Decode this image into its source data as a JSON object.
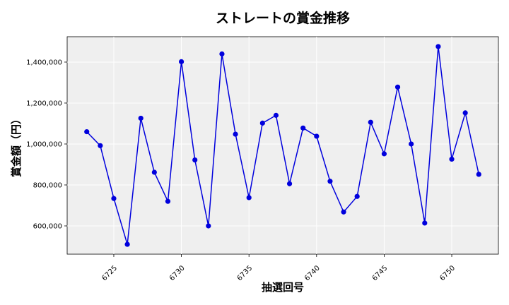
{
  "chart_data": {
    "type": "line",
    "title": "ストレートの賞金推移",
    "xlabel": "抽選回号",
    "ylabel": "賞金額（円）",
    "x": [
      6723,
      6724,
      6725,
      6726,
      6727,
      6728,
      6729,
      6730,
      6731,
      6732,
      6733,
      6734,
      6735,
      6736,
      6737,
      6738,
      6739,
      6740,
      6741,
      6742,
      6743,
      6744,
      6745,
      6746,
      6747,
      6748,
      6749,
      6750,
      6751,
      6752
    ],
    "series": [
      {
        "values": [
          1060000,
          992000,
          734000,
          510000,
          1126000,
          862000,
          720000,
          1402000,
          922000,
          600000,
          1440000,
          1048000,
          738000,
          1102000,
          1140000,
          806000,
          1078000,
          1038000,
          818000,
          668000,
          744000,
          1106000,
          952000,
          1278000,
          1000000,
          614000,
          1476000,
          926000,
          1152000,
          852000
        ],
        "color": "#0000dd"
      }
    ],
    "xticks": [
      6725,
      6730,
      6735,
      6740,
      6745,
      6750
    ],
    "xtick_labels": [
      "6725",
      "6730",
      "6735",
      "6740",
      "6745",
      "6750"
    ],
    "yticks": [
      600000,
      800000,
      1000000,
      1200000,
      1400000
    ],
    "ytick_labels": [
      "600,000",
      "800,000",
      "1,000,000",
      "1,200,000",
      "1,400,000"
    ],
    "xlim": [
      6721.55,
      6753.45
    ],
    "ylim": [
      462000,
      1524000
    ],
    "grid": true,
    "background": "#efefef"
  }
}
